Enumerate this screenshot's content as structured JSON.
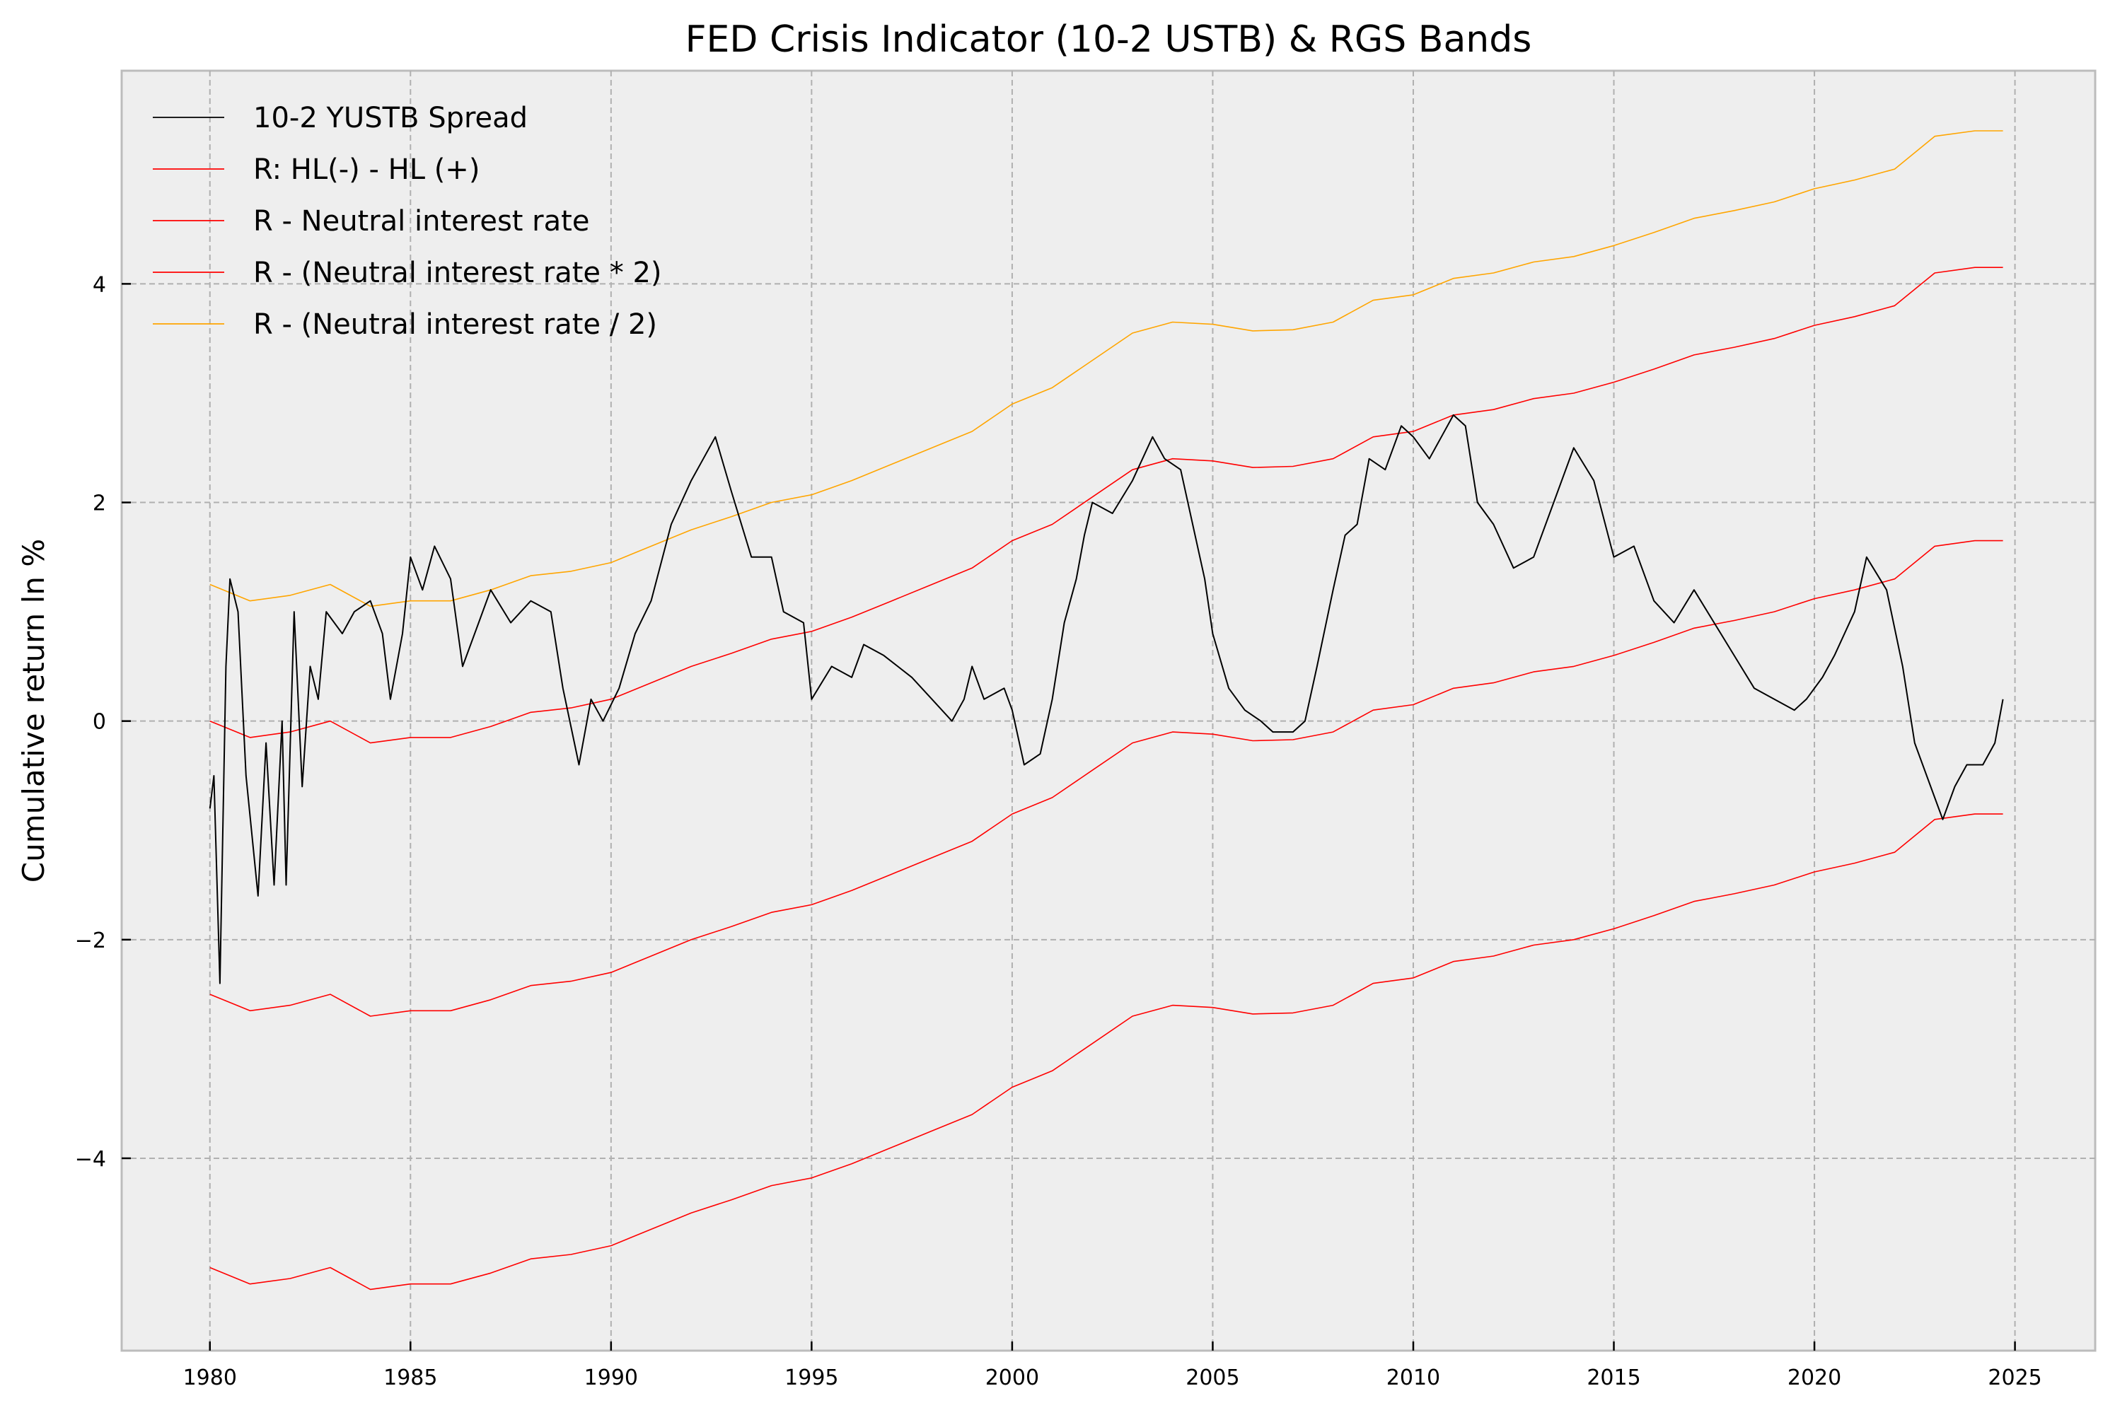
{
  "chart_data": {
    "type": "line",
    "title": "FED Crisis Indicator (10-2 USTB) & RGS Bands",
    "xlabel": "",
    "ylabel": "Cumulative return ln %",
    "xlim": [
      1977.8,
      2027.0
    ],
    "ylim": [
      -5.76,
      5.95
    ],
    "xticks": [
      1980,
      1985,
      1990,
      1995,
      2000,
      2005,
      2010,
      2015,
      2020,
      2025
    ],
    "xtick_labels": [
      "1980",
      "1985",
      "1990",
      "1995",
      "2000",
      "2005",
      "2010",
      "2015",
      "2020",
      "2025"
    ],
    "yticks": [
      -4,
      -2,
      0,
      2,
      4
    ],
    "ytick_labels": [
      "−4",
      "−2",
      "0",
      "2",
      "4"
    ],
    "grid": true,
    "legend_position": "top-left",
    "background": "#eeeeee",
    "series": [
      {
        "name": "10-2 YUSTB Spread",
        "color": "#000000",
        "x": [
          1980.0,
          1980.1,
          1980.25,
          1980.4,
          1980.5,
          1980.7,
          1980.9,
          1981.2,
          1981.4,
          1981.6,
          1981.8,
          1981.9,
          1982.1,
          1982.3,
          1982.5,
          1982.7,
          1982.9,
          1983.3,
          1983.6,
          1984.0,
          1984.3,
          1984.5,
          1984.8,
          1985.0,
          1985.3,
          1985.6,
          1986.0,
          1986.3,
          1986.7,
          1987.0,
          1987.5,
          1988.0,
          1988.5,
          1988.8,
          1989.2,
          1989.5,
          1989.8,
          1990.2,
          1990.6,
          1991.0,
          1991.5,
          1992.0,
          1992.3,
          1992.6,
          1993.0,
          1993.5,
          1994.0,
          1994.3,
          1994.8,
          1995.0,
          1995.5,
          1996.0,
          1996.3,
          1996.8,
          1997.5,
          1998.0,
          1998.5,
          1998.8,
          1999.0,
          1999.3,
          1999.8,
          2000.0,
          2000.3,
          2000.7,
          2001.0,
          2001.3,
          2001.6,
          2001.8,
          2002.0,
          2002.5,
          2003.0,
          2003.5,
          2003.8,
          2004.2,
          2004.5,
          2004.8,
          2005.0,
          2005.4,
          2005.8,
          2006.2,
          2006.5,
          2007.0,
          2007.3,
          2007.6,
          2008.0,
          2008.3,
          2008.6,
          2008.9,
          2009.3,
          2009.7,
          2010.0,
          2010.4,
          2010.7,
          2011.0,
          2011.3,
          2011.6,
          2012.0,
          2012.5,
          2013.0,
          2013.5,
          2014.0,
          2014.5,
          2015.0,
          2015.5,
          2016.0,
          2016.5,
          2017.0,
          2017.5,
          2018.0,
          2018.5,
          2019.0,
          2019.5,
          2019.8,
          2020.2,
          2020.5,
          2021.0,
          2021.3,
          2021.8,
          2022.2,
          2022.5,
          2022.8,
          2023.2,
          2023.5,
          2023.8,
          2024.2,
          2024.5,
          2024.7
        ],
        "y": [
          -0.8,
          -0.5,
          -2.4,
          0.5,
          1.3,
          1.0,
          -0.5,
          -1.6,
          -0.2,
          -1.5,
          0.0,
          -1.5,
          1.0,
          -0.6,
          0.5,
          0.2,
          1.0,
          0.8,
          1.0,
          1.1,
          0.8,
          0.2,
          0.8,
          1.5,
          1.2,
          1.6,
          1.3,
          0.5,
          0.9,
          1.2,
          0.9,
          1.1,
          1.0,
          0.3,
          -0.4,
          0.2,
          0.0,
          0.3,
          0.8,
          1.1,
          1.8,
          2.2,
          2.4,
          2.6,
          2.1,
          1.5,
          1.5,
          1.0,
          0.9,
          0.2,
          0.5,
          0.4,
          0.7,
          0.6,
          0.4,
          0.2,
          0.0,
          0.2,
          0.5,
          0.2,
          0.3,
          0.1,
          -0.4,
          -0.3,
          0.2,
          0.9,
          1.3,
          1.7,
          2.0,
          1.9,
          2.2,
          2.6,
          2.4,
          2.3,
          1.8,
          1.3,
          0.8,
          0.3,
          0.1,
          0.0,
          -0.1,
          -0.1,
          0.0,
          0.5,
          1.2,
          1.7,
          1.8,
          2.4,
          2.3,
          2.7,
          2.6,
          2.4,
          2.6,
          2.8,
          2.7,
          2.0,
          1.8,
          1.4,
          1.5,
          2.0,
          2.5,
          2.2,
          1.5,
          1.6,
          1.1,
          0.9,
          1.2,
          0.9,
          0.6,
          0.3,
          0.2,
          0.1,
          0.2,
          0.4,
          0.6,
          1.0,
          1.5,
          1.2,
          0.5,
          -0.2,
          -0.5,
          -0.9,
          -0.6,
          -0.4,
          -0.4,
          -0.2,
          0.2
        ]
      },
      {
        "name": "R: HL(-) - HL (+)",
        "color": "#ff0000",
        "x": [
          1980,
          1981,
          1982,
          1983,
          1984,
          1985,
          1986,
          1987,
          1988,
          1989,
          1990,
          1991,
          1992,
          1993,
          1994,
          1995,
          1996,
          1997,
          1998,
          1999,
          2000,
          2001,
          2002,
          2003,
          2004,
          2005,
          2006,
          2007,
          2008,
          2009,
          2010,
          2011,
          2012,
          2013,
          2014,
          2015,
          2016,
          2017,
          2018,
          2019,
          2020,
          2021,
          2022,
          2023,
          2024,
          2024.7
        ],
        "y": [
          -5.0,
          -5.15,
          -5.1,
          -5.0,
          -5.2,
          -5.15,
          -5.15,
          -5.05,
          -4.92,
          -4.88,
          -4.8,
          -4.65,
          -4.5,
          -4.38,
          -4.25,
          -4.18,
          -4.05,
          -3.9,
          -3.75,
          -3.6,
          -3.35,
          -3.2,
          -2.95,
          -2.7,
          -2.6,
          -2.62,
          -2.68,
          -2.67,
          -2.6,
          -2.4,
          -2.35,
          -2.2,
          -2.15,
          -2.05,
          -2.0,
          -1.9,
          -1.78,
          -1.65,
          -1.58,
          -1.5,
          -1.38,
          -1.3,
          -1.2,
          -0.9,
          -0.85,
          -0.85
        ]
      },
      {
        "name": "R - Neutral interest rate",
        "color": "#ff0000",
        "x": [
          1980,
          1981,
          1982,
          1983,
          1984,
          1985,
          1986,
          1987,
          1988,
          1989,
          1990,
          1991,
          1992,
          1993,
          1994,
          1995,
          1996,
          1997,
          1998,
          1999,
          2000,
          2001,
          2002,
          2003,
          2004,
          2005,
          2006,
          2007,
          2008,
          2009,
          2010,
          2011,
          2012,
          2013,
          2014,
          2015,
          2016,
          2017,
          2018,
          2019,
          2020,
          2021,
          2022,
          2023,
          2024,
          2024.7
        ],
        "y": [
          0.0,
          -0.15,
          -0.1,
          0.0,
          -0.2,
          -0.15,
          -0.15,
          -0.05,
          0.08,
          0.12,
          0.2,
          0.35,
          0.5,
          0.62,
          0.75,
          0.82,
          0.95,
          1.1,
          1.25,
          1.4,
          1.65,
          1.8,
          2.05,
          2.3,
          2.4,
          2.38,
          2.32,
          2.33,
          2.4,
          2.6,
          2.65,
          2.8,
          2.85,
          2.95,
          3.0,
          3.1,
          3.22,
          3.35,
          3.42,
          3.5,
          3.62,
          3.7,
          3.8,
          4.1,
          4.15,
          4.15
        ]
      },
      {
        "name": "R - (Neutral interest rate * 2)",
        "color": "#ff0000",
        "x": [
          1980,
          1981,
          1982,
          1983,
          1984,
          1985,
          1986,
          1987,
          1988,
          1989,
          1990,
          1991,
          1992,
          1993,
          1994,
          1995,
          1996,
          1997,
          1998,
          1999,
          2000,
          2001,
          2002,
          2003,
          2004,
          2005,
          2006,
          2007,
          2008,
          2009,
          2010,
          2011,
          2012,
          2013,
          2014,
          2015,
          2016,
          2017,
          2018,
          2019,
          2020,
          2021,
          2022,
          2023,
          2024,
          2024.7
        ],
        "y": [
          -2.5,
          -2.65,
          -2.6,
          -2.5,
          -2.7,
          -2.65,
          -2.65,
          -2.55,
          -2.42,
          -2.38,
          -2.3,
          -2.15,
          -2.0,
          -1.88,
          -1.75,
          -1.68,
          -1.55,
          -1.4,
          -1.25,
          -1.1,
          -0.85,
          -0.7,
          -0.45,
          -0.2,
          -0.1,
          -0.12,
          -0.18,
          -0.17,
          -0.1,
          0.1,
          0.15,
          0.3,
          0.35,
          0.45,
          0.5,
          0.6,
          0.72,
          0.85,
          0.92,
          1.0,
          1.12,
          1.2,
          1.3,
          1.6,
          1.65,
          1.65
        ]
      },
      {
        "name": "R - (Neutral interest rate / 2)",
        "color": "#ffa500",
        "x": [
          1980,
          1981,
          1982,
          1983,
          1984,
          1985,
          1986,
          1987,
          1988,
          1989,
          1990,
          1991,
          1992,
          1993,
          1994,
          1995,
          1996,
          1997,
          1998,
          1999,
          2000,
          2001,
          2002,
          2003,
          2004,
          2005,
          2006,
          2007,
          2008,
          2009,
          2010,
          2011,
          2012,
          2013,
          2014,
          2015,
          2016,
          2017,
          2018,
          2019,
          2020,
          2021,
          2022,
          2023,
          2024,
          2024.7
        ],
        "y": [
          1.25,
          1.1,
          1.15,
          1.25,
          1.05,
          1.1,
          1.1,
          1.2,
          1.33,
          1.37,
          1.45,
          1.6,
          1.75,
          1.87,
          2.0,
          2.07,
          2.2,
          2.35,
          2.5,
          2.65,
          2.9,
          3.05,
          3.3,
          3.55,
          3.65,
          3.63,
          3.57,
          3.58,
          3.65,
          3.85,
          3.9,
          4.05,
          4.1,
          4.2,
          4.25,
          4.35,
          4.47,
          4.6,
          4.67,
          4.75,
          4.87,
          4.95,
          5.05,
          5.35,
          5.4,
          5.4
        ]
      }
    ]
  }
}
